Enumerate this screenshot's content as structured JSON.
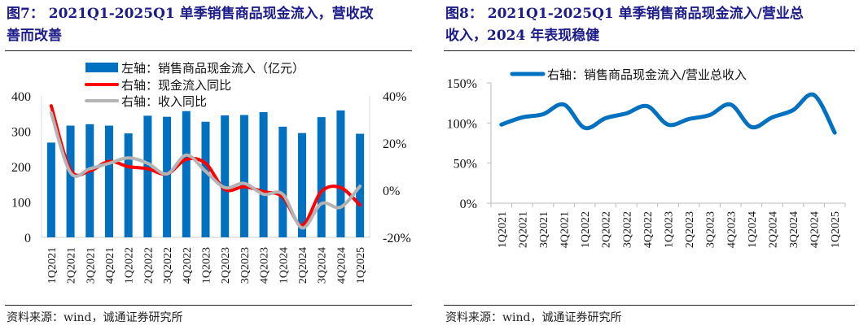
{
  "left": {
    "title_line1": "图7：  2021Q1-2025Q1 单季销售商品现金流入，营收改",
    "title_line2": "善而改善",
    "source": "资料来源：wind，诚通证券研究所"
  },
  "right": {
    "title_line1": "图8：  2021Q1-2025Q1 单季销售商品现金流入/营业总",
    "title_line2": "收入，2024 年表现稳健",
    "source": "资料来源：wind，诚通证券研究所"
  },
  "chart_data": [
    {
      "type": "bar",
      "categories": [
        "1Q2021",
        "2Q2021",
        "3Q2021",
        "4Q2021",
        "1Q2022",
        "2Q2022",
        "3Q2022",
        "4Q2022",
        "1Q2023",
        "2Q2023",
        "3Q2023",
        "4Q2023",
        "1Q2024",
        "2Q2024",
        "3Q2024",
        "4Q2024",
        "1Q2025"
      ],
      "series": [
        {
          "name": "左轴：销售商品现金流入（亿元）",
          "axis": "left",
          "type": "bar",
          "color": "#0070C0",
          "values": [
            268,
            316,
            320,
            316,
            294,
            344,
            341,
            357,
            327,
            345,
            346,
            354,
            313,
            295,
            340,
            359,
            293
          ]
        },
        {
          "name": "右轴：现金流入同比",
          "axis": "right",
          "type": "line",
          "color": "#FF0000",
          "values": [
            35.8,
            8.6,
            8.2,
            12.2,
            10.0,
            9.1,
            6.9,
            13.1,
            11.4,
            0.3,
            1.5,
            -0.6,
            -2.9,
            -14.9,
            -0.6,
            1.1,
            -6.3
          ]
        },
        {
          "name": "右轴：收入同比",
          "axis": "right",
          "type": "line",
          "color": "#B4B4B4",
          "values": [
            32.8,
            7.4,
            9.1,
            11.4,
            13.7,
            11.4,
            6.9,
            14.9,
            8.0,
            1.1,
            2.9,
            -1.7,
            -1.7,
            -16.0,
            -5.7,
            -7.2,
            1.7
          ]
        }
      ],
      "ylim_left": [
        0,
        400
      ],
      "yticks_left": [
        "0",
        "100",
        "200",
        "300",
        "400"
      ],
      "ylim_right": [
        -20,
        40
      ],
      "yticks_right": [
        "-20%",
        "0%",
        "20%",
        "40%"
      ],
      "legend": "top"
    },
    {
      "type": "line",
      "categories": [
        "1Q2021",
        "2Q2021",
        "3Q2021",
        "4Q2021",
        "1Q2022",
        "2Q2022",
        "3Q2022",
        "4Q2022",
        "1Q2023",
        "2Q2023",
        "3Q2023",
        "4Q2023",
        "1Q2024",
        "2Q2024",
        "3Q2024",
        "4Q2024",
        "1Q2025"
      ],
      "series": [
        {
          "name": "右轴：销售商品现金流入/营业总收入",
          "color": "#0070C0",
          "values": [
            98,
            107,
            111,
            123,
            94,
            106,
            112,
            121,
            98,
            105,
            110,
            123,
            95,
            107,
            116,
            135,
            88
          ]
        }
      ],
      "ylim": [
        0,
        150
      ],
      "yticks": [
        "0%",
        "50%",
        "100%",
        "150%"
      ],
      "legend": "top"
    }
  ]
}
